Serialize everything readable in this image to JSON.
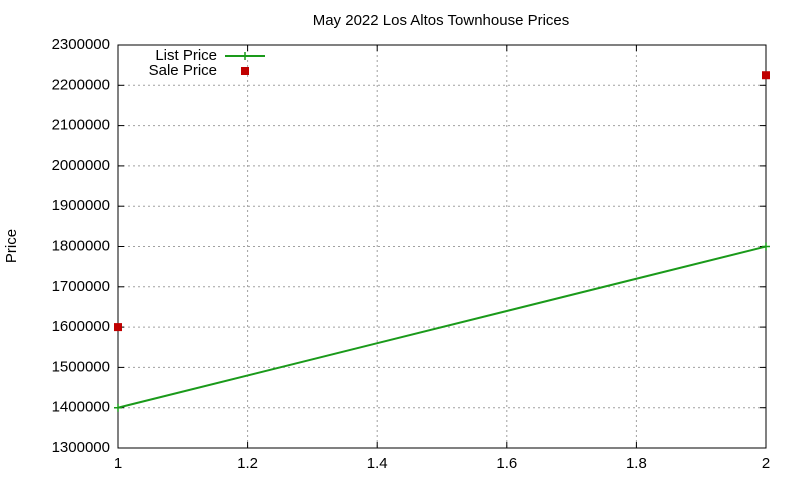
{
  "chart_data": {
    "type": "line",
    "title": "May 2022 Los Altos Townhouse Prices",
    "y_label": "Price",
    "xlim": [
      1,
      2
    ],
    "xticks": [
      1,
      1.2,
      1.4,
      1.6,
      1.8,
      2
    ],
    "ylim": [
      1300000,
      2300000
    ],
    "yticks": [
      1300000,
      1400000,
      1500000,
      1600000,
      1700000,
      1800000,
      1900000,
      2000000,
      2100000,
      2200000,
      2300000
    ],
    "grid": true,
    "legend_position": "top-left",
    "series": [
      {
        "name": "List Price",
        "color": "#1a9a1a",
        "style": "line",
        "x": [
          1,
          2
        ],
        "values": [
          1400000,
          1800000
        ]
      },
      {
        "name": "Sale Price",
        "color": "#c00000",
        "style": "points",
        "x": [
          1,
          2
        ],
        "values": [
          1600000,
          2225000
        ]
      }
    ]
  }
}
